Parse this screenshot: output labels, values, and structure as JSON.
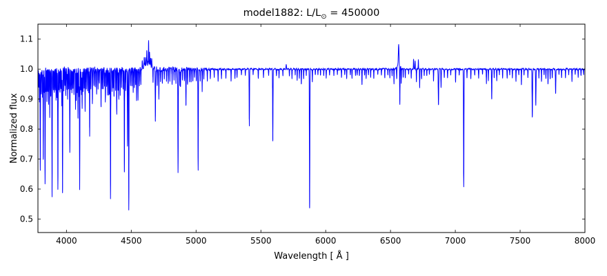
{
  "chart_data": {
    "type": "line",
    "title": "model1882: L/L⊙ = 450000",
    "title_parts": {
      "prefix": "model1882: L/L",
      "sub": "⊙",
      "suffix": " = 450000"
    },
    "xlabel": "Wavelength [ Å ]",
    "ylabel": "Normalized flux",
    "xlim": [
      3780,
      8000
    ],
    "ylim": [
      0.455,
      1.15
    ],
    "xticks": [
      4000,
      4500,
      5000,
      5500,
      6000,
      6500,
      7000,
      7500,
      8000
    ],
    "yticks": [
      0.5,
      0.6,
      0.7,
      0.8,
      0.9,
      1.0,
      1.1
    ],
    "line_color": "#0000ff",
    "axis_color": "#000000",
    "background": "#ffffff",
    "continuum": 1.0,
    "grid": false,
    "legend": "none",
    "noise": {
      "blue_amp": 0.009,
      "red_amp": 0.0035,
      "blue_end": 4750,
      "red_start": 5250,
      "scale": 3
    },
    "features_format": "[wavelength_A, flux_delta_at_center, sigma_A]",
    "features": [
      [
        3786,
        -0.06,
        1.2
      ],
      [
        3792,
        -0.1,
        1.2
      ],
      [
        3798,
        -0.34,
        1.3
      ],
      [
        3806,
        -0.08,
        1.2
      ],
      [
        3815,
        -0.09,
        1.2
      ],
      [
        3821,
        -0.3,
        1.3
      ],
      [
        3829,
        -0.08,
        1.2
      ],
      [
        3835,
        -0.38,
        1.4
      ],
      [
        3843,
        -0.07,
        1.2
      ],
      [
        3849,
        -0.11,
        1.2
      ],
      [
        3856,
        -0.08,
        1.2
      ],
      [
        3862,
        -0.12,
        1.2
      ],
      [
        3871,
        -0.16,
        1.2
      ],
      [
        3879,
        -0.09,
        1.2
      ],
      [
        3889,
        -0.42,
        1.4
      ],
      [
        3899,
        -0.07,
        1.2
      ],
      [
        3906,
        -0.08,
        1.2
      ],
      [
        3913,
        -0.07,
        1.2
      ],
      [
        3920,
        -0.1,
        1.2
      ],
      [
        3927,
        -0.09,
        1.2
      ],
      [
        3934,
        -0.4,
        1.4
      ],
      [
        3942,
        -0.07,
        1.2
      ],
      [
        3950,
        -0.08,
        1.2
      ],
      [
        3957,
        -0.07,
        1.2
      ],
      [
        3964,
        -0.12,
        1.2
      ],
      [
        3970,
        -0.41,
        1.4
      ],
      [
        3980,
        -0.07,
        1.2
      ],
      [
        3988,
        -0.06,
        1.2
      ],
      [
        3995,
        -0.09,
        1.2
      ],
      [
        4004,
        -0.07,
        1.2
      ],
      [
        4009,
        -0.1,
        1.2
      ],
      [
        4017,
        -0.06,
        1.2
      ],
      [
        4026,
        -0.28,
        1.4
      ],
      [
        4035,
        -0.07,
        1.2
      ],
      [
        4042,
        -0.08,
        1.2
      ],
      [
        4050,
        -0.06,
        1.2
      ],
      [
        4058,
        -0.08,
        1.2
      ],
      [
        4070,
        -0.13,
        1.2
      ],
      [
        4076,
        -0.1,
        1.2
      ],
      [
        4083,
        -0.08,
        1.2
      ],
      [
        4089,
        -0.16,
        1.2
      ],
      [
        4097,
        -0.09,
        1.2
      ],
      [
        4102,
        -0.4,
        1.4
      ],
      [
        4110,
        -0.07,
        1.2
      ],
      [
        4116,
        -0.09,
        1.2
      ],
      [
        4121,
        -0.13,
        1.2
      ],
      [
        4128,
        -0.07,
        1.2
      ],
      [
        4136,
        -0.06,
        1.2
      ],
      [
        4144,
        -0.14,
        1.3
      ],
      [
        4153,
        -0.06,
        1.2
      ],
      [
        4163,
        -0.07,
        1.2
      ],
      [
        4172,
        -0.08,
        1.2
      ],
      [
        4179,
        -0.22,
        1.3
      ],
      [
        4188,
        -0.07,
        1.2
      ],
      [
        4200,
        -0.11,
        1.3
      ],
      [
        4212,
        -0.05,
        1.2
      ],
      [
        4222,
        -0.06,
        1.2
      ],
      [
        4233,
        -0.08,
        1.2
      ],
      [
        4244,
        -0.06,
        1.2
      ],
      [
        4254,
        -0.05,
        1.2
      ],
      [
        4267,
        -0.12,
        1.2
      ],
      [
        4276,
        -0.06,
        1.2
      ],
      [
        4284,
        -0.07,
        1.2
      ],
      [
        4294,
        -0.06,
        1.2
      ],
      [
        4300,
        -0.1,
        1.3
      ],
      [
        4310,
        -0.06,
        1.2
      ],
      [
        4317,
        -0.08,
        1.2
      ],
      [
        4326,
        -0.09,
        1.2
      ],
      [
        4332,
        -0.08,
        1.2
      ],
      [
        4340,
        -0.43,
        1.4
      ],
      [
        4352,
        -0.08,
        1.2
      ],
      [
        4360,
        -0.06,
        1.2
      ],
      [
        4367,
        -0.09,
        1.2
      ],
      [
        4379,
        -0.07,
        1.2
      ],
      [
        4388,
        -0.15,
        1.3
      ],
      [
        4398,
        -0.06,
        1.2
      ],
      [
        4404,
        -0.1,
        1.2
      ],
      [
        4415,
        -0.09,
        1.2
      ],
      [
        4425,
        -0.06,
        1.2
      ],
      [
        4437,
        -0.07,
        1.2
      ],
      [
        4447,
        -0.34,
        1.3
      ],
      [
        4457,
        -0.07,
        1.2
      ],
      [
        4471,
        -0.25,
        1.4
      ],
      [
        4481,
        -0.47,
        1.3
      ],
      [
        4494,
        -0.06,
        1.2
      ],
      [
        4505,
        -0.05,
        1.2
      ],
      [
        4515,
        -0.08,
        1.2
      ],
      [
        4524,
        -0.06,
        1.2
      ],
      [
        4534,
        -0.05,
        1.2
      ],
      [
        4541,
        -0.1,
        1.2
      ],
      [
        4552,
        -0.11,
        1.2
      ],
      [
        4563,
        -0.06,
        1.2
      ],
      [
        4574,
        -0.05,
        1.2
      ],
      [
        4585,
        0.025,
        1.5
      ],
      [
        4600,
        0.03,
        1.5
      ],
      [
        4610,
        0.03,
        1.3
      ],
      [
        4620,
        0.04,
        1.4
      ],
      [
        4630,
        0.02,
        25
      ],
      [
        4634,
        0.085,
        1.4
      ],
      [
        4641,
        0.035,
        1.4
      ],
      [
        4650,
        0.03,
        1.4
      ],
      [
        4658,
        0.02,
        1.3
      ],
      [
        4668,
        -0.05,
        1.2
      ],
      [
        4686,
        -0.17,
        1.5
      ],
      [
        4700,
        -0.05,
        1.2
      ],
      [
        4713,
        -0.1,
        1.3
      ],
      [
        4726,
        -0.04,
        1.2
      ],
      [
        4740,
        -0.04,
        1.2
      ],
      [
        4755,
        -0.03,
        1.2
      ],
      [
        4772,
        -0.04,
        1.2
      ],
      [
        4785,
        -0.05,
        1.2
      ],
      [
        4798,
        -0.04,
        1.2
      ],
      [
        4815,
        -0.05,
        1.2
      ],
      [
        4830,
        -0.04,
        1.2
      ],
      [
        4845,
        -0.05,
        1.2
      ],
      [
        4861,
        -0.34,
        1.6
      ],
      [
        4875,
        -0.05,
        1.2
      ],
      [
        4880,
        -0.06,
        1.2
      ],
      [
        4895,
        -0.04,
        1.2
      ],
      [
        4910,
        -0.04,
        1.2
      ],
      [
        4922,
        -0.12,
        1.4
      ],
      [
        4934,
        -0.05,
        1.2
      ],
      [
        4950,
        -0.04,
        1.2
      ],
      [
        4962,
        -0.04,
        1.2
      ],
      [
        4975,
        -0.04,
        1.2
      ],
      [
        4988,
        -0.03,
        1.2
      ],
      [
        5002,
        -0.04,
        1.2
      ],
      [
        5016,
        -0.34,
        1.5
      ],
      [
        5032,
        -0.04,
        1.2
      ],
      [
        5047,
        -0.07,
        1.2
      ],
      [
        5060,
        -0.03,
        1.2
      ],
      [
        5087,
        -0.04,
        1.2
      ],
      [
        5110,
        -0.03,
        1.2
      ],
      [
        5140,
        -0.03,
        1.2
      ],
      [
        5170,
        -0.04,
        1.2
      ],
      [
        5196,
        -0.03,
        1.2
      ],
      [
        5230,
        -0.03,
        1.2
      ],
      [
        5270,
        -0.04,
        1.2
      ],
      [
        5300,
        -0.03,
        1.2
      ],
      [
        5316,
        -0.03,
        1.2
      ],
      [
        5350,
        -0.02,
        1.2
      ],
      [
        5380,
        -0.02,
        1.2
      ],
      [
        5411,
        -0.19,
        1.5
      ],
      [
        5440,
        -0.02,
        1.2
      ],
      [
        5480,
        -0.03,
        1.2
      ],
      [
        5520,
        -0.03,
        1.2
      ],
      [
        5560,
        -0.02,
        1.2
      ],
      [
        5592,
        -0.24,
        1.5
      ],
      [
        5620,
        -0.02,
        1.2
      ],
      [
        5640,
        -0.03,
        1.2
      ],
      [
        5670,
        -0.02,
        1.2
      ],
      [
        5696,
        0.015,
        2.0
      ],
      [
        5720,
        -0.02,
        1.2
      ],
      [
        5740,
        -0.03,
        1.2
      ],
      [
        5765,
        -0.02,
        1.2
      ],
      [
        5780,
        -0.04,
        1.2
      ],
      [
        5797,
        -0.03,
        1.2
      ],
      [
        5812,
        -0.05,
        1.2
      ],
      [
        5830,
        -0.03,
        1.2
      ],
      [
        5850,
        -0.02,
        1.2
      ],
      [
        5876,
        -0.465,
        1.6
      ],
      [
        5897,
        -0.04,
        1.2
      ],
      [
        5920,
        -0.02,
        1.2
      ],
      [
        5940,
        -0.02,
        1.2
      ],
      [
        5960,
        -0.02,
        1.2
      ],
      [
        5985,
        -0.02,
        1.2
      ],
      [
        6004,
        -0.03,
        1.2
      ],
      [
        6030,
        -0.02,
        1.2
      ],
      [
        6063,
        -0.02,
        1.2
      ],
      [
        6090,
        -0.02,
        1.2
      ],
      [
        6122,
        -0.03,
        1.2
      ],
      [
        6147,
        -0.02,
        1.2
      ],
      [
        6162,
        -0.03,
        1.2
      ],
      [
        6190,
        -0.02,
        1.2
      ],
      [
        6203,
        -0.03,
        1.2
      ],
      [
        6230,
        -0.02,
        1.2
      ],
      [
        6243,
        -0.02,
        1.2
      ],
      [
        6260,
        -0.02,
        1.2
      ],
      [
        6280,
        -0.05,
        1.4
      ],
      [
        6300,
        -0.02,
        1.2
      ],
      [
        6312,
        -0.03,
        1.2
      ],
      [
        6330,
        -0.02,
        1.2
      ],
      [
        6347,
        -0.03,
        1.2
      ],
      [
        6371,
        -0.03,
        1.2
      ],
      [
        6402,
        -0.02,
        1.2
      ],
      [
        6430,
        -0.02,
        1.2
      ],
      [
        6456,
        -0.03,
        1.2
      ],
      [
        6480,
        -0.02,
        1.2
      ],
      [
        6495,
        -0.03,
        1.2
      ],
      [
        6512,
        -0.02,
        1.2
      ],
      [
        6527,
        -0.05,
        1.2
      ],
      [
        6548,
        -0.04,
        1.4
      ],
      [
        6563,
        0.07,
        2.5
      ],
      [
        6563,
        0.015,
        12
      ],
      [
        6572,
        -0.13,
        1.5
      ],
      [
        6583,
        -0.05,
        1.2
      ],
      [
        6598,
        -0.03,
        1.2
      ],
      [
        6614,
        -0.03,
        1.2
      ],
      [
        6640,
        -0.02,
        1.2
      ],
      [
        6660,
        -0.03,
        1.2
      ],
      [
        6678,
        0.035,
        1.5
      ],
      [
        6690,
        0.025,
        1.3
      ],
      [
        6700,
        -0.04,
        1.2
      ],
      [
        6715,
        0.03,
        1.3
      ],
      [
        6725,
        -0.06,
        1.2
      ],
      [
        6740,
        -0.03,
        1.2
      ],
      [
        6760,
        -0.02,
        1.2
      ],
      [
        6780,
        -0.02,
        1.2
      ],
      [
        6800,
        -0.02,
        1.2
      ],
      [
        6832,
        -0.04,
        1.2
      ],
      [
        6870,
        -0.12,
        2.0
      ],
      [
        6890,
        -0.06,
        1.5
      ],
      [
        6915,
        -0.03,
        1.2
      ],
      [
        6940,
        -0.03,
        1.2
      ],
      [
        6965,
        -0.02,
        1.2
      ],
      [
        7002,
        -0.04,
        1.2
      ],
      [
        7030,
        -0.02,
        1.2
      ],
      [
        7065,
        -0.39,
        1.6
      ],
      [
        7090,
        -0.03,
        1.2
      ],
      [
        7120,
        -0.03,
        1.2
      ],
      [
        7150,
        -0.02,
        1.2
      ],
      [
        7180,
        -0.03,
        1.2
      ],
      [
        7210,
        -0.02,
        1.2
      ],
      [
        7240,
        -0.05,
        1.2
      ],
      [
        7255,
        -0.04,
        1.2
      ],
      [
        7281,
        -0.1,
        1.5
      ],
      [
        7300,
        -0.03,
        1.2
      ],
      [
        7320,
        -0.04,
        1.2
      ],
      [
        7340,
        -0.02,
        1.2
      ],
      [
        7365,
        -0.03,
        1.2
      ],
      [
        7400,
        -0.03,
        1.2
      ],
      [
        7420,
        -0.02,
        1.2
      ],
      [
        7440,
        -0.03,
        1.2
      ],
      [
        7468,
        -0.04,
        1.2
      ],
      [
        7490,
        -0.02,
        1.2
      ],
      [
        7510,
        -0.05,
        1.2
      ],
      [
        7530,
        -0.02,
        1.2
      ],
      [
        7560,
        -0.03,
        1.2
      ],
      [
        7594,
        -0.16,
        1.8
      ],
      [
        7621,
        -0.12,
        1.6
      ],
      [
        7645,
        -0.03,
        1.2
      ],
      [
        7665,
        -0.04,
        1.2
      ],
      [
        7685,
        -0.02,
        1.2
      ],
      [
        7699,
        -0.03,
        1.2
      ],
      [
        7715,
        -0.05,
        1.2
      ],
      [
        7732,
        -0.03,
        1.2
      ],
      [
        7748,
        -0.03,
        1.2
      ],
      [
        7774,
        -0.08,
        1.6
      ],
      [
        7800,
        -0.02,
        1.2
      ],
      [
        7820,
        -0.03,
        1.2
      ],
      [
        7850,
        -0.03,
        1.2
      ],
      [
        7875,
        -0.02,
        1.2
      ],
      [
        7900,
        -0.04,
        1.2
      ],
      [
        7925,
        -0.02,
        1.2
      ],
      [
        7948,
        -0.03,
        1.2
      ],
      [
        7970,
        -0.02,
        1.2
      ],
      [
        7990,
        -0.02,
        1.2
      ]
    ]
  }
}
